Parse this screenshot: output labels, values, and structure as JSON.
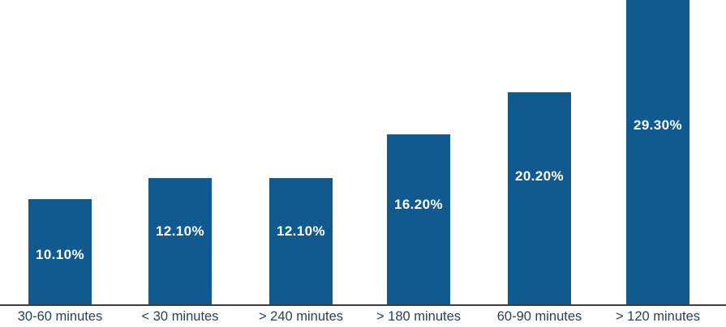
{
  "chart_data": {
    "type": "bar",
    "categories": [
      "30-60 minutes",
      "< 30 minutes",
      "> 240 minutes",
      "> 180 minutes",
      "60-90 minutes",
      "> 120 minutes"
    ],
    "values": [
      10.1,
      12.1,
      12.1,
      16.2,
      20.2,
      29.3
    ],
    "value_labels": [
      "10.10%",
      "12.10%",
      "12.10%",
      "16.20%",
      "20.20%",
      "29.30%"
    ],
    "title": "",
    "xlabel": "",
    "ylabel": "",
    "ylim": [
      0,
      29.3
    ],
    "grid": false,
    "legend": null,
    "axes_ticks_visible": false,
    "value_labels_position": "inside",
    "colors": {
      "bar_fill": "#115A90",
      "value_label_text": "#FFFFFF",
      "category_label_text": "#24425E",
      "axis_line": "#3C3C3C",
      "background": "#FFFFFF"
    }
  }
}
